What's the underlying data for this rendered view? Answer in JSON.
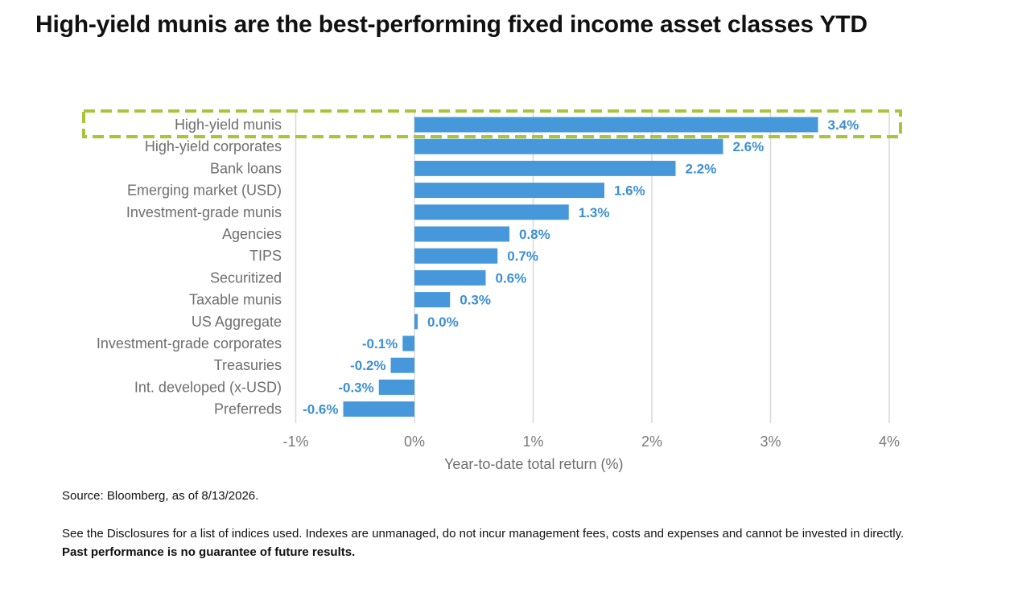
{
  "page": {
    "title": "High-yield munis are the best-performing fixed income asset classes YTD",
    "source": "Source: Bloomberg, as of 8/13/2026.",
    "disclosure": "See the Disclosures for a list of indices used. Indexes are unmanaged, do not incur management fees, costs and expenses and cannot be invested in directly.",
    "disclosure_bold": "Past performance is no guarantee of future results."
  },
  "colors": {
    "bar": "#4698db",
    "value_label": "#3d8fd4",
    "highlight": "#a8c43a",
    "grid": "#d8d8d8"
  },
  "chart_data": {
    "type": "bar",
    "orientation": "horizontal",
    "categories": [
      "High-yield munis",
      "High-yield corporates",
      "Bank loans",
      "Emerging market (USD)",
      "Investment-grade munis",
      "Agencies",
      "TIPS",
      "Securitized",
      "Taxable munis",
      "US Aggregate",
      "Investment-grade corporates",
      "Treasuries",
      "Int. developed (x-USD)",
      "Preferreds"
    ],
    "values": [
      3.4,
      2.6,
      2.2,
      1.6,
      1.3,
      0.8,
      0.7,
      0.6,
      0.3,
      0.0,
      -0.1,
      -0.2,
      -0.3,
      -0.6
    ],
    "value_labels": [
      "3.4%",
      "2.6%",
      "2.2%",
      "1.6%",
      "1.3%",
      "0.8%",
      "0.7%",
      "0.6%",
      "0.3%",
      "0.0%",
      "-0.1%",
      "-0.2%",
      "-0.3%",
      "-0.6%"
    ],
    "xlim": [
      -1,
      4
    ],
    "xticks": [
      -1,
      0,
      1,
      2,
      3,
      4
    ],
    "xtick_labels": [
      "-1%",
      "0%",
      "1%",
      "2%",
      "3%",
      "4%"
    ],
    "xlabel": "Year-to-date total return (%)",
    "ylabel": "",
    "grid": true,
    "highlighted_category": "High-yield munis"
  }
}
